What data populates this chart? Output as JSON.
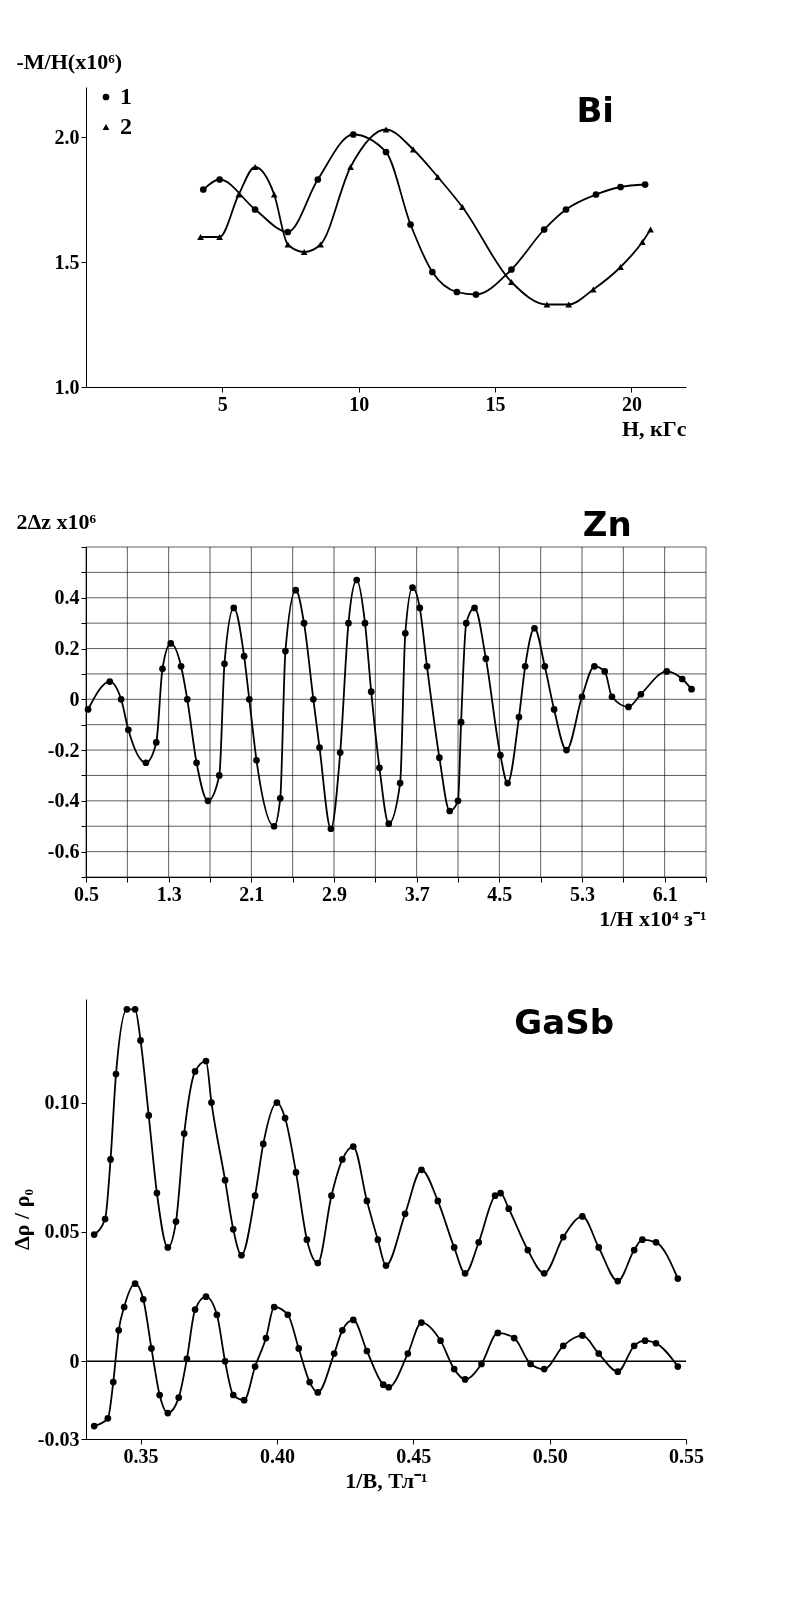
{
  "chart_data": [
    {
      "type": "line",
      "title": "Bi",
      "ylabel": "-M/H(x10⁶)",
      "xlabel": "H, кГс",
      "xlim": [
        0,
        22
      ],
      "ylim": [
        1.0,
        2.2
      ],
      "xticks": [
        5,
        10,
        15,
        20
      ],
      "yticks": [
        {
          "value": 1.0,
          "label": "1.0"
        },
        1.5,
        {
          "value": 2.0,
          "label": "2.0"
        }
      ],
      "grid": false,
      "legend": "top left",
      "series": [
        {
          "name": "1",
          "color": "#000000",
          "marker": "circle",
          "x": [
            4.3,
            4.9,
            6.2,
            7.4,
            8.5,
            9.8,
            11.0,
            11.9,
            12.7,
            13.6,
            14.3,
            15.6,
            16.8,
            17.6,
            18.7,
            19.6,
            20.5
          ],
          "values": [
            1.79,
            1.83,
            1.71,
            1.62,
            1.83,
            2.01,
            1.94,
            1.65,
            1.46,
            1.38,
            1.37,
            1.47,
            1.63,
            1.71,
            1.77,
            1.8,
            1.81
          ]
        },
        {
          "name": "2",
          "color": "#000000",
          "marker": "triangle",
          "x": [
            4.2,
            4.9,
            5.6,
            6.2,
            6.9,
            7.4,
            8.0,
            8.6,
            9.7,
            11.0,
            12.0,
            12.9,
            13.8,
            15.6,
            16.9,
            17.7,
            18.6,
            19.6,
            20.4,
            20.7
          ],
          "values": [
            1.6,
            1.6,
            1.77,
            1.88,
            1.77,
            1.57,
            1.54,
            1.57,
            1.88,
            2.03,
            1.95,
            1.84,
            1.72,
            1.42,
            1.33,
            1.33,
            1.39,
            1.48,
            1.58,
            1.63
          ]
        }
      ]
    },
    {
      "type": "line",
      "title": "Zn",
      "ylabel": "2Δz x10⁶",
      "xlabel": "1/H x10⁴ з⁻¹",
      "xlim": [
        0.5,
        6.5
      ],
      "ylim": [
        -0.7,
        0.6
      ],
      "marker": "circle",
      "grid": true,
      "xticks": [
        0.5,
        {
          "value": 0.9,
          "label": null
        },
        1.3,
        {
          "value": 1.7,
          "label": null
        },
        2.1,
        {
          "value": 2.5,
          "label": null
        },
        2.9,
        {
          "value": 3.3,
          "label": null
        },
        3.7,
        {
          "value": 4.1,
          "label": null
        },
        4.5,
        {
          "value": 4.9,
          "label": null
        },
        5.3,
        {
          "value": 5.7,
          "label": null
        },
        6.1,
        {
          "value": 6.5,
          "label": null
        }
      ],
      "yticks": [
        {
          "value": -0.7,
          "label": null
        },
        -0.6,
        {
          "value": -0.5,
          "label": null
        },
        -0.4,
        {
          "value": -0.3,
          "label": null
        },
        -0.2,
        {
          "value": -0.1,
          "label": null
        },
        0,
        {
          "value": 0.1,
          "label": null
        },
        0.2,
        {
          "value": 0.3,
          "label": null
        },
        0.4,
        {
          "value": 0.5,
          "label": null
        },
        {
          "value": 0.6,
          "label": null
        }
      ],
      "series": [
        {
          "color": "#000000",
          "x": [
            0.52,
            0.73,
            0.84,
            0.91,
            1.08,
            1.18,
            1.24,
            1.32,
            1.42,
            1.48,
            1.57,
            1.68,
            1.79,
            1.84,
            1.93,
            2.03,
            2.08,
            2.15,
            2.32,
            2.38,
            2.43,
            2.53,
            2.61,
            2.7,
            2.76,
            2.87,
            2.96,
            3.04,
            3.12,
            3.2,
            3.26,
            3.34,
            3.43,
            3.54,
            3.59,
            3.66,
            3.73,
            3.8,
            3.92,
            4.02,
            4.1,
            4.13,
            4.18,
            4.26,
            4.37,
            4.51,
            4.58,
            4.69,
            4.75,
            4.84,
            4.94,
            5.03,
            5.15,
            5.3,
            5.42,
            5.52,
            5.59,
            5.75,
            5.87,
            6.12,
            6.27,
            6.36
          ],
          "values": [
            -0.04,
            0.07,
            0.0,
            -0.12,
            -0.25,
            -0.17,
            0.12,
            0.22,
            0.13,
            0.0,
            -0.25,
            -0.4,
            -0.3,
            0.14,
            0.36,
            0.17,
            0.0,
            -0.24,
            -0.5,
            -0.39,
            0.19,
            0.43,
            0.3,
            0.0,
            -0.19,
            -0.51,
            -0.21,
            0.3,
            0.47,
            0.3,
            0.03,
            -0.27,
            -0.49,
            -0.33,
            0.26,
            0.44,
            0.36,
            0.13,
            -0.23,
            -0.44,
            -0.4,
            -0.09,
            0.3,
            0.36,
            0.16,
            -0.22,
            -0.33,
            -0.07,
            0.13,
            0.28,
            0.13,
            -0.04,
            -0.2,
            0.01,
            0.13,
            0.11,
            0.01,
            -0.03,
            0.02,
            0.11,
            0.08,
            0.04
          ]
        }
      ]
    },
    {
      "type": "line",
      "title": "GaSb",
      "ylabel": "Δρ / ρ₀",
      "xlabel": "1/B, Тл⁻¹",
      "xlim": [
        0.33,
        0.55
      ],
      "ylim": [
        -0.03,
        0.14
      ],
      "marker": "circle",
      "grid": false,
      "xticks": [
        0.35,
        {
          "value": 0.4,
          "label": "0.40"
        },
        0.45,
        {
          "value": 0.5,
          "label": "0.50"
        },
        0.55
      ],
      "yticks": [
        -0.03,
        0,
        0.05,
        {
          "value": 0.1,
          "label": "0.10"
        }
      ],
      "ref_lines": [
        {
          "axis": "y",
          "value": 0,
          "color": "#000000"
        }
      ],
      "series": [
        {
          "color": "#000000",
          "x": [
            0.333,
            0.337,
            0.339,
            0.341,
            0.345,
            0.348,
            0.35,
            0.353,
            0.356,
            0.36,
            0.363,
            0.366,
            0.37,
            0.374,
            0.376,
            0.381,
            0.384,
            0.387,
            0.392,
            0.395,
            0.4,
            0.403,
            0.407,
            0.411,
            0.415,
            0.42,
            0.424,
            0.428,
            0.433,
            0.437,
            0.44,
            0.447,
            0.453,
            0.459,
            0.465,
            0.469,
            0.474,
            0.48,
            0.482,
            0.485,
            0.492,
            0.498,
            0.505,
            0.512,
            0.518,
            0.525,
            0.531,
            0.534,
            0.539,
            0.547
          ],
          "values": [
            0.049,
            0.055,
            0.078,
            0.111,
            0.136,
            0.136,
            0.124,
            0.095,
            0.065,
            0.044,
            0.054,
            0.088,
            0.112,
            0.116,
            0.1,
            0.07,
            0.051,
            0.041,
            0.064,
            0.084,
            0.1,
            0.094,
            0.073,
            0.047,
            0.038,
            0.064,
            0.078,
            0.083,
            0.062,
            0.047,
            0.037,
            0.057,
            0.074,
            0.062,
            0.044,
            0.034,
            0.046,
            0.064,
            0.065,
            0.059,
            0.043,
            0.034,
            0.048,
            0.056,
            0.044,
            0.031,
            0.043,
            0.047,
            0.046,
            0.032
          ]
        },
        {
          "color": "#000000",
          "x": [
            0.333,
            0.338,
            0.34,
            0.342,
            0.344,
            0.348,
            0.351,
            0.354,
            0.357,
            0.36,
            0.364,
            0.367,
            0.37,
            0.374,
            0.378,
            0.381,
            0.384,
            0.388,
            0.392,
            0.396,
            0.399,
            0.404,
            0.408,
            0.412,
            0.415,
            0.421,
            0.424,
            0.428,
            0.433,
            0.439,
            0.441,
            0.448,
            0.453,
            0.46,
            0.465,
            0.469,
            0.475,
            0.481,
            0.487,
            0.493,
            0.498,
            0.505,
            0.512,
            0.518,
            0.525,
            0.531,
            0.535,
            0.539,
            0.547
          ],
          "values": [
            -0.025,
            -0.022,
            -0.008,
            0.012,
            0.021,
            0.03,
            0.024,
            0.005,
            -0.013,
            -0.02,
            -0.014,
            0.001,
            0.02,
            0.025,
            0.018,
            0.0,
            -0.013,
            -0.015,
            -0.002,
            0.009,
            0.021,
            0.018,
            0.005,
            -0.008,
            -0.012,
            0.003,
            0.012,
            0.016,
            0.004,
            -0.009,
            -0.01,
            0.003,
            0.015,
            0.008,
            -0.003,
            -0.007,
            -0.001,
            0.011,
            0.009,
            -0.001,
            -0.003,
            0.006,
            0.01,
            0.003,
            -0.004,
            0.006,
            0.008,
            0.007,
            -0.002
          ]
        }
      ]
    }
  ]
}
